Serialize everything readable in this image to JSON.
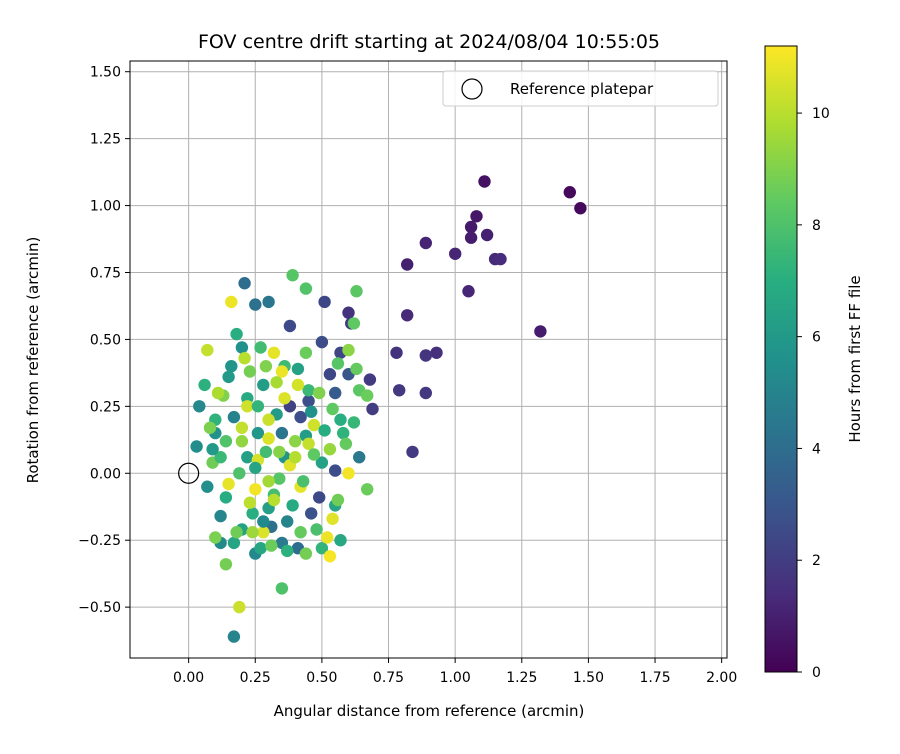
{
  "chart_data": {
    "type": "scatter",
    "title": "FOV centre drift starting at 2024/08/04 10:55:05",
    "xlabel": "Angular distance from reference (arcmin)",
    "ylabel": "Rotation from reference (arcmin)",
    "xlim": [
      -0.22,
      2.02
    ],
    "ylim": [
      -0.69,
      1.54
    ],
    "xticks": [
      "0.00",
      "0.25",
      "0.50",
      "0.75",
      "1.00",
      "1.25",
      "1.50",
      "1.75",
      "2.00"
    ],
    "yticks": [
      "−0.50",
      "−0.25",
      "0.00",
      "0.25",
      "0.50",
      "0.75",
      "1.00",
      "1.25",
      "1.50"
    ],
    "grid": true,
    "legend_position": "top-right",
    "legend": {
      "label": "Reference platepar",
      "marker": "open circle"
    },
    "reference_point": {
      "x": 0.0,
      "y": 0.0
    },
    "colorbar": {
      "label": "Hours from first FF file",
      "min": 0,
      "max": 11.2,
      "ticks": [
        "0",
        "2",
        "4",
        "6",
        "8",
        "10"
      ],
      "colormap": "viridis"
    },
    "points": [
      {
        "x": 1.43,
        "y": 1.05,
        "h": 0.3
      },
      {
        "x": 1.47,
        "y": 0.99,
        "h": 0.3
      },
      {
        "x": 1.11,
        "y": 1.09,
        "h": 0.5
      },
      {
        "x": 1.08,
        "y": 0.96,
        "h": 0.7
      },
      {
        "x": 1.06,
        "y": 0.92,
        "h": 0.8
      },
      {
        "x": 1.06,
        "y": 0.88,
        "h": 0.9
      },
      {
        "x": 1.12,
        "y": 0.89,
        "h": 1.0
      },
      {
        "x": 0.89,
        "y": 0.86,
        "h": 1.1
      },
      {
        "x": 1.0,
        "y": 0.82,
        "h": 1.2
      },
      {
        "x": 1.15,
        "y": 0.8,
        "h": 1.3
      },
      {
        "x": 1.17,
        "y": 0.8,
        "h": 1.4
      },
      {
        "x": 0.82,
        "y": 0.78,
        "h": 1.0
      },
      {
        "x": 1.05,
        "y": 0.68,
        "h": 1.2
      },
      {
        "x": 1.32,
        "y": 0.53,
        "h": 0.9
      },
      {
        "x": 0.82,
        "y": 0.59,
        "h": 1.3
      },
      {
        "x": 0.78,
        "y": 0.45,
        "h": 1.6
      },
      {
        "x": 0.93,
        "y": 0.45,
        "h": 1.5
      },
      {
        "x": 0.89,
        "y": 0.44,
        "h": 1.7
      },
      {
        "x": 0.79,
        "y": 0.31,
        "h": 1.8
      },
      {
        "x": 0.89,
        "y": 0.3,
        "h": 1.8
      },
      {
        "x": 0.84,
        "y": 0.08,
        "h": 1.9
      },
      {
        "x": 0.68,
        "y": 0.35,
        "h": 1.9
      },
      {
        "x": 0.69,
        "y": 0.24,
        "h": 2.0
      },
      {
        "x": 0.6,
        "y": 0.6,
        "h": 1.6
      },
      {
        "x": 0.51,
        "y": 0.64,
        "h": 2.4
      },
      {
        "x": 0.61,
        "y": 0.56,
        "h": 1.9
      },
      {
        "x": 0.5,
        "y": 0.49,
        "h": 2.6
      },
      {
        "x": 0.57,
        "y": 0.45,
        "h": 2.3
      },
      {
        "x": 0.53,
        "y": 0.37,
        "h": 2.4
      },
      {
        "x": 0.38,
        "y": 0.55,
        "h": 2.5
      },
      {
        "x": 0.45,
        "y": 0.27,
        "h": 2.7
      },
      {
        "x": 0.42,
        "y": 0.21,
        "h": 2.7
      },
      {
        "x": 0.38,
        "y": 0.25,
        "h": 2.2
      },
      {
        "x": 0.49,
        "y": -0.09,
        "h": 2.5
      },
      {
        "x": 0.46,
        "y": -0.15,
        "h": 2.8
      },
      {
        "x": 0.55,
        "y": 0.01,
        "h": 2.6
      },
      {
        "x": 0.6,
        "y": 0.37,
        "h": 3.0
      },
      {
        "x": 0.55,
        "y": 0.3,
        "h": 3.2
      },
      {
        "x": 0.21,
        "y": 0.71,
        "h": 4.0
      },
      {
        "x": 0.25,
        "y": 0.63,
        "h": 4.2
      },
      {
        "x": 0.3,
        "y": 0.64,
        "h": 4.4
      },
      {
        "x": 0.64,
        "y": 0.06,
        "h": 4.5
      },
      {
        "x": 0.35,
        "y": -0.26,
        "h": 4.6
      },
      {
        "x": 0.41,
        "y": -0.28,
        "h": 4.0
      },
      {
        "x": 0.31,
        "y": -0.2,
        "h": 4.1
      },
      {
        "x": 0.17,
        "y": -0.61,
        "h": 5.0
      },
      {
        "x": 0.04,
        "y": 0.25,
        "h": 5.2
      },
      {
        "x": 0.03,
        "y": 0.1,
        "h": 5.4
      },
      {
        "x": 0.07,
        "y": -0.05,
        "h": 5.5
      },
      {
        "x": 0.12,
        "y": -0.16,
        "h": 5.1
      },
      {
        "x": 0.12,
        "y": -0.26,
        "h": 5.3
      },
      {
        "x": 0.25,
        "y": -0.3,
        "h": 5.2
      },
      {
        "x": 0.2,
        "y": 0.47,
        "h": 5.6
      },
      {
        "x": 0.16,
        "y": 0.4,
        "h": 5.8
      },
      {
        "x": 0.1,
        "y": 0.15,
        "h": 5.7
      },
      {
        "x": 0.15,
        "y": 0.36,
        "h": 6.0
      },
      {
        "x": 0.26,
        "y": 0.15,
        "h": 5.9
      },
      {
        "x": 0.28,
        "y": 0.33,
        "h": 6.2
      },
      {
        "x": 0.33,
        "y": 0.22,
        "h": 6.1
      },
      {
        "x": 0.22,
        "y": 0.06,
        "h": 6.3
      },
      {
        "x": 0.36,
        "y": 0.06,
        "h": 5.8
      },
      {
        "x": 0.2,
        "y": -0.21,
        "h": 6.4
      },
      {
        "x": 0.17,
        "y": -0.26,
        "h": 6.5
      },
      {
        "x": 0.27,
        "y": -0.28,
        "h": 6.6
      },
      {
        "x": 0.3,
        "y": -0.13,
        "h": 6.3
      },
      {
        "x": 0.44,
        "y": 0.14,
        "h": 6.2
      },
      {
        "x": 0.5,
        "y": 0.04,
        "h": 6.4
      },
      {
        "x": 0.55,
        "y": -0.12,
        "h": 6.5
      },
      {
        "x": 0.57,
        "y": -0.25,
        "h": 6.7
      },
      {
        "x": 0.22,
        "y": 0.28,
        "h": 6.8
      },
      {
        "x": 0.18,
        "y": 0.52,
        "h": 7.0
      },
      {
        "x": 0.06,
        "y": 0.33,
        "h": 7.1
      },
      {
        "x": 0.1,
        "y": 0.2,
        "h": 7.2
      },
      {
        "x": 0.14,
        "y": -0.09,
        "h": 6.9
      },
      {
        "x": 0.24,
        "y": -0.15,
        "h": 7.0
      },
      {
        "x": 0.37,
        "y": -0.29,
        "h": 7.1
      },
      {
        "x": 0.5,
        "y": -0.28,
        "h": 7.3
      },
      {
        "x": 0.58,
        "y": 0.15,
        "h": 7.2
      },
      {
        "x": 0.62,
        "y": 0.19,
        "h": 7.4
      },
      {
        "x": 0.45,
        "y": 0.31,
        "h": 7.5
      },
      {
        "x": 0.36,
        "y": 0.4,
        "h": 7.6
      },
      {
        "x": 0.27,
        "y": 0.47,
        "h": 7.7
      },
      {
        "x": 0.32,
        "y": -0.08,
        "h": 7.8
      },
      {
        "x": 0.48,
        "y": -0.21,
        "h": 7.9
      },
      {
        "x": 0.35,
        "y": -0.43,
        "h": 8.0
      },
      {
        "x": 0.39,
        "y": 0.74,
        "h": 8.2
      },
      {
        "x": 0.44,
        "y": 0.69,
        "h": 8.1
      },
      {
        "x": 0.63,
        "y": 0.68,
        "h": 8.3
      },
      {
        "x": 0.62,
        "y": 0.56,
        "h": 8.4
      },
      {
        "x": 0.56,
        "y": 0.41,
        "h": 8.2
      },
      {
        "x": 0.63,
        "y": 0.39,
        "h": 8.5
      },
      {
        "x": 0.64,
        "y": 0.31,
        "h": 8.3
      },
      {
        "x": 0.67,
        "y": 0.29,
        "h": 8.6
      },
      {
        "x": 0.54,
        "y": 0.24,
        "h": 8.4
      },
      {
        "x": 0.59,
        "y": 0.11,
        "h": 8.5
      },
      {
        "x": 0.67,
        "y": -0.06,
        "h": 8.6
      },
      {
        "x": 0.56,
        "y": -0.1,
        "h": 8.7
      },
      {
        "x": 0.42,
        "y": -0.22,
        "h": 8.5
      },
      {
        "x": 0.44,
        "y": -0.3,
        "h": 8.8
      },
      {
        "x": 0.31,
        "y": -0.27,
        "h": 8.6
      },
      {
        "x": 0.18,
        "y": -0.22,
        "h": 8.7
      },
      {
        "x": 0.14,
        "y": -0.34,
        "h": 8.8
      },
      {
        "x": 0.1,
        "y": -0.24,
        "h": 8.9
      },
      {
        "x": 0.09,
        "y": 0.04,
        "h": 8.7
      },
      {
        "x": 0.08,
        "y": 0.17,
        "h": 8.9
      },
      {
        "x": 0.13,
        "y": 0.29,
        "h": 9.0
      },
      {
        "x": 0.23,
        "y": 0.38,
        "h": 8.8
      },
      {
        "x": 0.29,
        "y": 0.4,
        "h": 9.0
      },
      {
        "x": 0.34,
        "y": 0.08,
        "h": 9.1
      },
      {
        "x": 0.4,
        "y": 0.12,
        "h": 9.2
      },
      {
        "x": 0.49,
        "y": 0.3,
        "h": 9.0
      },
      {
        "x": 0.6,
        "y": 0.46,
        "h": 9.2
      },
      {
        "x": 0.07,
        "y": 0.46,
        "h": 10.2
      },
      {
        "x": 0.21,
        "y": 0.43,
        "h": 10.0
      },
      {
        "x": 0.11,
        "y": 0.3,
        "h": 9.8
      },
      {
        "x": 0.16,
        "y": 0.64,
        "h": 10.9
      },
      {
        "x": 0.22,
        "y": 0.25,
        "h": 10.4
      },
      {
        "x": 0.3,
        "y": 0.13,
        "h": 10.6
      },
      {
        "x": 0.19,
        "y": -0.5,
        "h": 10.3
      },
      {
        "x": 0.32,
        "y": 0.45,
        "h": 10.8
      },
      {
        "x": 0.35,
        "y": 0.38,
        "h": 10.9
      },
      {
        "x": 0.41,
        "y": 0.33,
        "h": 10.5
      },
      {
        "x": 0.38,
        "y": 0.03,
        "h": 10.7
      },
      {
        "x": 0.42,
        "y": -0.05,
        "h": 10.8
      },
      {
        "x": 0.28,
        "y": -0.22,
        "h": 10.6
      },
      {
        "x": 0.25,
        "y": -0.06,
        "h": 11.0
      },
      {
        "x": 0.52,
        "y": -0.24,
        "h": 10.9
      },
      {
        "x": 0.53,
        "y": -0.31,
        "h": 11.1
      },
      {
        "x": 0.6,
        "y": 0.0,
        "h": 11.0
      },
      {
        "x": 0.54,
        "y": -0.17,
        "h": 10.7
      },
      {
        "x": 0.36,
        "y": 0.28,
        "h": 10.6
      },
      {
        "x": 0.26,
        "y": 0.05,
        "h": 10.5
      },
      {
        "x": 0.3,
        "y": 0.2,
        "h": 10.3
      },
      {
        "x": 0.47,
        "y": 0.18,
        "h": 10.4
      },
      {
        "x": 0.2,
        "y": 0.17,
        "h": 10.2
      },
      {
        "x": 0.15,
        "y": -0.04,
        "h": 10.8
      },
      {
        "x": 0.23,
        "y": -0.11,
        "h": 10.1
      },
      {
        "x": 0.32,
        "y": -0.1,
        "h": 10.0
      },
      {
        "x": 0.4,
        "y": 0.06,
        "h": 9.9
      },
      {
        "x": 0.45,
        "y": 0.11,
        "h": 10.2
      },
      {
        "x": 0.33,
        "y": 0.34,
        "h": 9.7
      },
      {
        "x": 0.12,
        "y": 0.06,
        "h": 7.5
      },
      {
        "x": 0.19,
        "y": 0.0,
        "h": 8.0
      },
      {
        "x": 0.25,
        "y": 0.02,
        "h": 6.5
      },
      {
        "x": 0.29,
        "y": 0.08,
        "h": 7.7
      },
      {
        "x": 0.34,
        "y": -0.02,
        "h": 8.2
      },
      {
        "x": 0.39,
        "y": -0.12,
        "h": 6.8
      },
      {
        "x": 0.43,
        "y": -0.03,
        "h": 7.9
      },
      {
        "x": 0.47,
        "y": 0.07,
        "h": 8.4
      },
      {
        "x": 0.51,
        "y": 0.16,
        "h": 6.9
      },
      {
        "x": 0.46,
        "y": 0.23,
        "h": 5.6
      },
      {
        "x": 0.41,
        "y": 0.39,
        "h": 6.4
      },
      {
        "x": 0.26,
        "y": 0.25,
        "h": 7.3
      },
      {
        "x": 0.2,
        "y": 0.12,
        "h": 9.3
      },
      {
        "x": 0.17,
        "y": 0.21,
        "h": 4.9
      },
      {
        "x": 0.14,
        "y": 0.12,
        "h": 8.1
      },
      {
        "x": 0.09,
        "y": 0.09,
        "h": 6.0
      },
      {
        "x": 0.24,
        "y": -0.22,
        "h": 9.5
      },
      {
        "x": 0.37,
        "y": -0.18,
        "h": 5.0
      },
      {
        "x": 0.53,
        "y": 0.09,
        "h": 9.4
      },
      {
        "x": 0.57,
        "y": 0.2,
        "h": 7.0
      },
      {
        "x": 0.3,
        "y": -0.03,
        "h": 9.6
      },
      {
        "x": 0.35,
        "y": 0.15,
        "h": 4.3
      },
      {
        "x": 0.44,
        "y": 0.45,
        "h": 8.6
      },
      {
        "x": 0.28,
        "y": -0.18,
        "h": 5.3
      }
    ]
  }
}
